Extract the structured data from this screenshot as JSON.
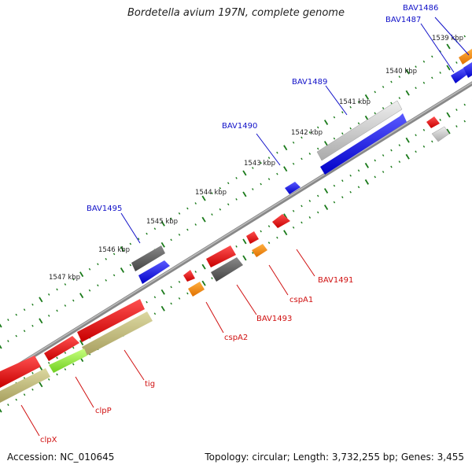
{
  "title": "Bordetella avium 197N, complete genome",
  "footer": {
    "accession": "Accession: NC_010645",
    "summary": "Topology: circular; Length: 3,732,255 bp; Genes: 3,455"
  },
  "ticks": [
    "1539 kbp",
    "1540 kbp",
    "1541 kbp",
    "1542 kbp",
    "1543 kbp",
    "1544 kbp",
    "1545 kbp",
    "1546 kbp",
    "1547 kbp"
  ],
  "forward_labels": [
    "BAV1486",
    "BAV1487",
    "BAV1489",
    "BAV1490",
    "BAV1495"
  ],
  "reverse_labels": [
    "BAV1491",
    "cspA1",
    "BAV1493",
    "cspA2",
    "tig",
    "clpP",
    "clpX"
  ],
  "colors": {
    "forward_cds": "#1010e0",
    "reverse_cds": "#e01010",
    "gray_feature": "#555555",
    "light_gray_feature": "#c8c8c8",
    "orange_feature": "#ff8c00",
    "olive_feature": "#bdb878",
    "green_feature": "#90ee40",
    "tick_green": "#1a7a1a",
    "backbone": "#888888"
  }
}
